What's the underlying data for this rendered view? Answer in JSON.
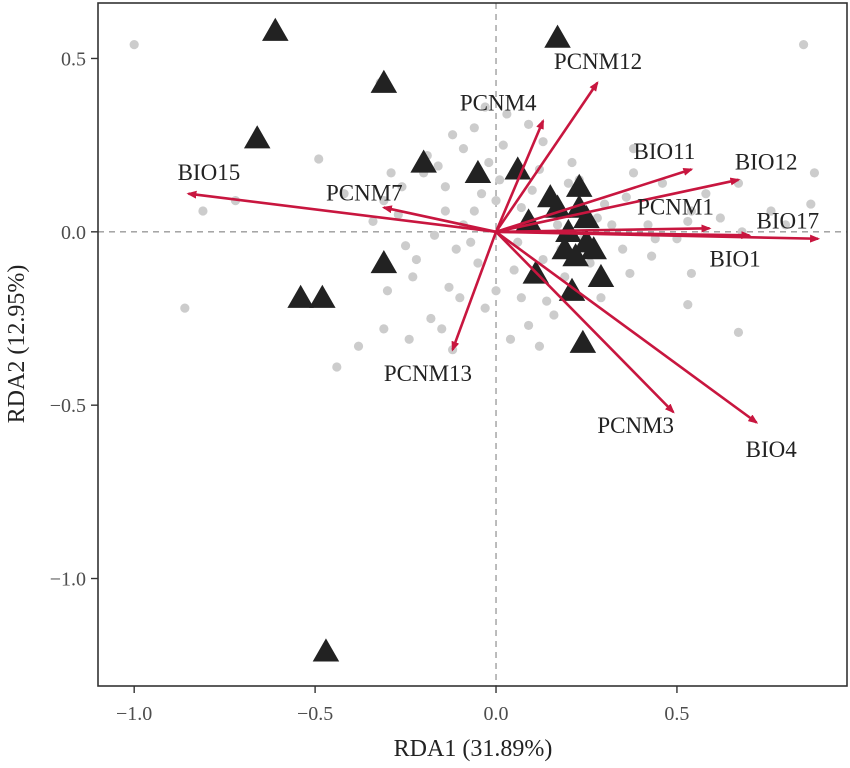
{
  "chart_data": {
    "type": "scatter",
    "xlabel": "RDA1 (31.89%)",
    "ylabel": "RDA2 (12.95%)",
    "xlim": [
      -1.1,
      0.97
    ],
    "ylim": [
      -1.31,
      0.66
    ],
    "xticks": [
      -1.0,
      -0.5,
      0.0,
      0.5
    ],
    "xtick_labels": [
      "−1.0",
      "−0.5",
      "0.0",
      "0.5"
    ],
    "yticks": [
      0.5,
      0.0,
      -0.5,
      -1.0
    ],
    "ytick_labels": [
      "0.5",
      "0.0",
      "−0.5",
      "−1.0"
    ],
    "grid": false,
    "zero_lines": true,
    "colors": {
      "points": "#cccccc",
      "triangles": "#222222",
      "arrows": "#c8163f",
      "frame": "#333333",
      "zero_lines": "#999999"
    },
    "points": [
      [
        -1.0,
        0.54
      ],
      [
        0.85,
        0.54
      ],
      [
        -0.86,
        -0.22
      ],
      [
        -0.81,
        0.06
      ],
      [
        -0.72,
        0.09
      ],
      [
        -0.32,
        0.43
      ],
      [
        -0.49,
        0.21
      ],
      [
        -0.42,
        0.11
      ],
      [
        -0.34,
        0.03
      ],
      [
        -0.29,
        0.17
      ],
      [
        -0.19,
        0.22
      ],
      [
        -0.14,
        0.13
      ],
      [
        -0.09,
        0.24
      ],
      [
        -0.03,
        0.36
      ],
      [
        0.03,
        0.34
      ],
      [
        0.09,
        0.31
      ],
      [
        0.02,
        0.25
      ],
      [
        -0.02,
        0.2
      ],
      [
        -0.14,
        0.06
      ],
      [
        -0.17,
        -0.01
      ],
      [
        -0.25,
        -0.04
      ],
      [
        -0.23,
        -0.13
      ],
      [
        -0.13,
        -0.16
      ],
      [
        -0.05,
        -0.09
      ],
      [
        0.05,
        -0.11
      ],
      [
        0.14,
        -0.2
      ],
      [
        0.09,
        -0.27
      ],
      [
        -0.03,
        -0.22
      ],
      [
        -0.18,
        -0.25
      ],
      [
        -0.24,
        -0.31
      ],
      [
        -0.31,
        -0.28
      ],
      [
        -0.38,
        -0.33
      ],
      [
        -0.44,
        -0.39
      ],
      [
        -0.12,
        -0.34
      ],
      [
        0.04,
        -0.31
      ],
      [
        0.12,
        -0.33
      ],
      [
        0.16,
        -0.24
      ],
      [
        0.29,
        -0.19
      ],
      [
        0.37,
        -0.12
      ],
      [
        0.43,
        -0.07
      ],
      [
        0.5,
        -0.02
      ],
      [
        0.54,
        0.06
      ],
      [
        0.58,
        0.11
      ],
      [
        0.38,
        0.24
      ],
      [
        0.38,
        0.17
      ],
      [
        0.2,
        0.14
      ],
      [
        0.15,
        0.1
      ],
      [
        0.22,
        0.06
      ],
      [
        0.28,
        0.04
      ],
      [
        0.24,
        -0.02
      ],
      [
        0.18,
        -0.05
      ],
      [
        0.1,
        0.03
      ],
      [
        0.06,
        -0.03
      ],
      [
        -0.06,
        0.06
      ],
      [
        -0.09,
        0.02
      ],
      [
        -0.11,
        -0.05
      ],
      [
        -0.07,
        -0.03
      ],
      [
        0.0,
        0.09
      ],
      [
        0.01,
        0.15
      ],
      [
        -0.04,
        0.11
      ],
      [
        0.12,
        0.18
      ],
      [
        0.07,
        0.07
      ],
      [
        0.13,
        -0.08
      ],
      [
        0.19,
        -0.13
      ],
      [
        0.26,
        -0.09
      ],
      [
        0.32,
        0.02
      ],
      [
        0.35,
        -0.05
      ],
      [
        0.46,
        0.14
      ],
      [
        0.67,
        0.14
      ],
      [
        0.76,
        0.06
      ],
      [
        0.8,
        0.02
      ],
      [
        0.88,
        0.17
      ],
      [
        0.87,
        0.08
      ],
      [
        0.54,
        -0.12
      ],
      [
        0.53,
        -0.21
      ],
      [
        0.67,
        -0.29
      ],
      [
        0.53,
        0.03
      ],
      [
        0.42,
        0.02
      ],
      [
        0.44,
        -0.02
      ],
      [
        0.62,
        0.04
      ],
      [
        0.68,
        0.0
      ],
      [
        -0.2,
        0.17
      ],
      [
        -0.26,
        0.13
      ],
      [
        -0.31,
        0.09
      ],
      [
        -0.27,
        0.05
      ],
      [
        -0.22,
        -0.08
      ],
      [
        -0.3,
        -0.17
      ],
      [
        -0.15,
        -0.28
      ],
      [
        -0.1,
        -0.19
      ],
      [
        0.0,
        -0.17
      ],
      [
        0.07,
        -0.19
      ],
      [
        -0.06,
        0.3
      ],
      [
        -0.12,
        0.28
      ],
      [
        0.13,
        0.26
      ],
      [
        0.21,
        0.2
      ],
      [
        0.23,
        0.15
      ],
      [
        -0.16,
        0.19
      ],
      [
        0.1,
        0.12
      ],
      [
        0.17,
        0.02
      ],
      [
        0.3,
        0.08
      ],
      [
        0.36,
        0.1
      ]
    ],
    "triangles": [
      [
        -0.61,
        0.58
      ],
      [
        0.17,
        0.56
      ],
      [
        -0.31,
        0.43
      ],
      [
        -0.66,
        0.27
      ],
      [
        -0.2,
        0.2
      ],
      [
        -0.05,
        0.17
      ],
      [
        0.06,
        0.18
      ],
      [
        0.15,
        0.1
      ],
      [
        0.23,
        0.13
      ],
      [
        0.23,
        0.07
      ],
      [
        0.17,
        0.07
      ],
      [
        0.09,
        0.03
      ],
      [
        0.25,
        0.04
      ],
      [
        0.2,
        0.0
      ],
      [
        0.25,
        -0.03
      ],
      [
        0.27,
        -0.05
      ],
      [
        0.22,
        -0.07
      ],
      [
        0.19,
        -0.05
      ],
      [
        0.29,
        -0.13
      ],
      [
        0.21,
        -0.17
      ],
      [
        0.11,
        -0.12
      ],
      [
        0.24,
        -0.32
      ],
      [
        -0.31,
        -0.09
      ],
      [
        -0.54,
        -0.19
      ],
      [
        -0.48,
        -0.19
      ],
      [
        -0.47,
        -1.21
      ]
    ],
    "vectors": [
      {
        "label": "PCNM12",
        "x": 0.28,
        "y": 0.43
      },
      {
        "label": "PCNM4",
        "x": 0.13,
        "y": 0.32
      },
      {
        "label": "BIO11",
        "x": 0.54,
        "y": 0.18
      },
      {
        "label": "BIO12",
        "x": 0.67,
        "y": 0.15
      },
      {
        "label": "PCNM1",
        "x": 0.59,
        "y": 0.01
      },
      {
        "label": "BIO17",
        "x": 0.89,
        "y": -0.02
      },
      {
        "label": "BIO1",
        "x": 0.7,
        "y": -0.01
      },
      {
        "label": "BIO15",
        "x": -0.85,
        "y": 0.11
      },
      {
        "label": "PCNM7",
        "x": -0.31,
        "y": 0.07
      },
      {
        "label": "PCNM13",
        "x": -0.12,
        "y": -0.34
      },
      {
        "label": "PCNM3",
        "x": 0.49,
        "y": -0.52
      },
      {
        "label": "BIO4",
        "x": 0.72,
        "y": -0.55
      }
    ],
    "vector_labels": [
      {
        "text": "PCNM12",
        "x": 0.16,
        "y": 0.47,
        "anchor": "start"
      },
      {
        "text": "PCNM4",
        "x": -0.1,
        "y": 0.35,
        "anchor": "start"
      },
      {
        "text": "BIO11",
        "x": 0.38,
        "y": 0.21,
        "anchor": "start"
      },
      {
        "text": "BIO12",
        "x": 0.66,
        "y": 0.18,
        "anchor": "start"
      },
      {
        "text": "PCNM1",
        "x": 0.39,
        "y": 0.05,
        "anchor": "start"
      },
      {
        "text": "BIO17",
        "x": 0.72,
        "y": 0.01,
        "anchor": "start"
      },
      {
        "text": "BIO1",
        "x": 0.59,
        "y": -0.1,
        "anchor": "start"
      },
      {
        "text": "BIO15",
        "x": -0.88,
        "y": 0.15,
        "anchor": "start"
      },
      {
        "text": "PCNM7",
        "x": -0.47,
        "y": 0.09,
        "anchor": "start"
      },
      {
        "text": "PCNM13",
        "x": -0.31,
        "y": -0.43,
        "anchor": "start"
      },
      {
        "text": "PCNM3",
        "x": 0.28,
        "y": -0.58,
        "anchor": "start"
      },
      {
        "text": "BIO4",
        "x": 0.69,
        "y": -0.65,
        "anchor": "start"
      }
    ]
  }
}
